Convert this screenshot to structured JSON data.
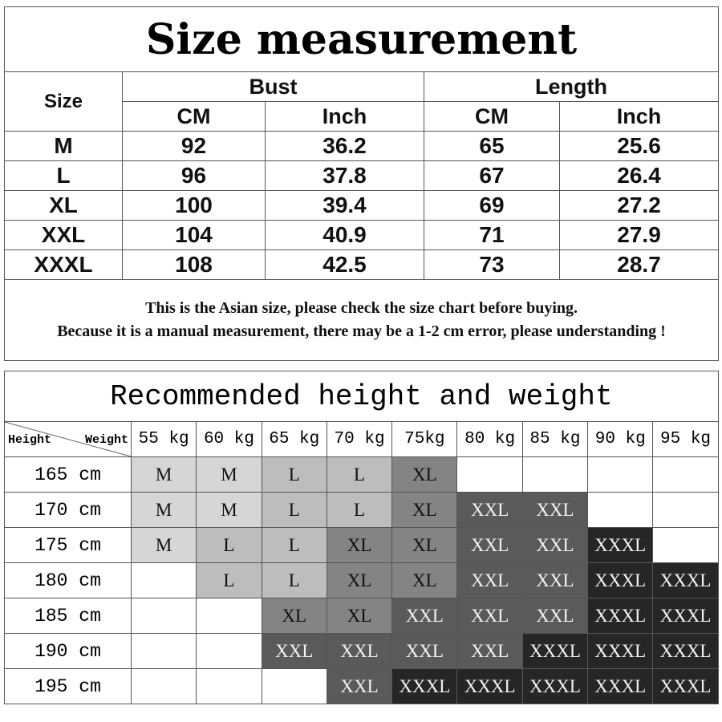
{
  "size_table": {
    "title": "Size measurement",
    "size_header": "Size",
    "bust_header": "Bust",
    "length_header": "Length",
    "cm": "CM",
    "inch": "Inch",
    "rows": [
      {
        "size": "M",
        "bust_cm": "92",
        "bust_inch": "36.2",
        "length_cm": "65",
        "length_inch": "25.6"
      },
      {
        "size": "L",
        "bust_cm": "96",
        "bust_inch": "37.8",
        "length_cm": "67",
        "length_inch": "26.4"
      },
      {
        "size": "XL",
        "bust_cm": "100",
        "bust_inch": "39.4",
        "length_cm": "69",
        "length_inch": "27.2"
      },
      {
        "size": "XXL",
        "bust_cm": "104",
        "bust_inch": "40.9",
        "length_cm": "71",
        "length_inch": "27.9"
      },
      {
        "size": "XXXL",
        "bust_cm": "108",
        "bust_inch": "42.5",
        "length_cm": "73",
        "length_inch": "28.7"
      }
    ],
    "note_line1": "This is the Asian size, please check the size chart before buying.",
    "note_line2": "Because it is a manual measurement, there may be a 1-2 cm error, please understanding !"
  },
  "recommend_table": {
    "title": "Recommended height and weight",
    "corner_height": "Height",
    "corner_weight": "Weight",
    "weights": [
      "55 kg",
      "60 kg",
      "65 kg",
      "70 kg",
      "75kg",
      "80 kg",
      "85 kg",
      "90 kg",
      "95 kg"
    ],
    "rows": [
      {
        "height": "165 cm",
        "sizes": [
          "M",
          "M",
          "L",
          "L",
          "XL",
          "",
          "",
          "",
          ""
        ]
      },
      {
        "height": "170 cm",
        "sizes": [
          "M",
          "M",
          "L",
          "L",
          "XL",
          "XXL",
          "XXL",
          "",
          ""
        ]
      },
      {
        "height": "175 cm",
        "sizes": [
          "M",
          "L",
          "L",
          "XL",
          "XL",
          "XXL",
          "XXL",
          "XXXL",
          ""
        ]
      },
      {
        "height": "180 cm",
        "sizes": [
          "",
          "L",
          "L",
          "XL",
          "XL",
          "XXL",
          "XXL",
          "XXXL",
          "XXXL"
        ]
      },
      {
        "height": "185 cm",
        "sizes": [
          "",
          "",
          "XL",
          "XL",
          "XXL",
          "XXL",
          "XXL",
          "XXXL",
          "XXXL"
        ]
      },
      {
        "height": "190 cm",
        "sizes": [
          "",
          "",
          "XXL",
          "XXL",
          "XXL",
          "XXL",
          "XXXL",
          "XXXL",
          "XXXL"
        ]
      },
      {
        "height": "195 cm",
        "sizes": [
          "",
          "",
          "",
          "XXL",
          "XXXL",
          "XXXL",
          "XXXL",
          "XXXL",
          "XXXL"
        ]
      }
    ],
    "size_colors": {
      "M": "#d6d6d6",
      "L": "#bdbdbd",
      "XL": "#848484",
      "XXL": "#5a5a5a",
      "XXXL": "#262626"
    },
    "size_text_colors": {
      "M": "#111111",
      "L": "#111111",
      "XL": "#111111",
      "XXL": "#f2f2f2",
      "XXXL": "#f2f2f2"
    }
  }
}
